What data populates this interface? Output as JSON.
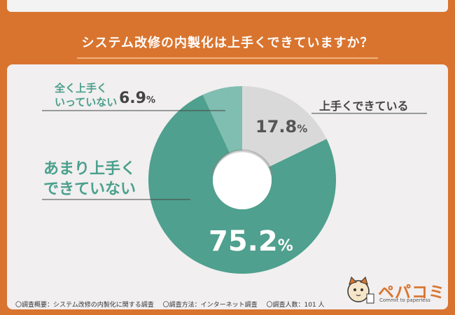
{
  "title": "システム改修の内製化は上手くできていますか？",
  "chart_data": {
    "type": "pie",
    "style": "donut",
    "slices": [
      {
        "label": "上手くできている",
        "value": 17.8,
        "color": "#d9d9d9"
      },
      {
        "label": "あまり上手く\nできていない",
        "value": 75.2,
        "color": "#4fa08e"
      },
      {
        "label": "全く上手く\nいっていない",
        "value": 6.9,
        "color": "#7fbeb0"
      }
    ],
    "percent_unit": "%"
  },
  "labels": {
    "not_at_all_line1": "全く上手く",
    "not_at_all_line2": "いっていない",
    "not_at_all_value": "6.9",
    "not_well_line1": "あまり上手く",
    "not_well_line2": "できていない",
    "well": "上手くできている",
    "well_value": "17.8",
    "not_well_value": "75.2",
    "unit": "%"
  },
  "footer": {
    "overview": "〇調査概要：システム改修の内製化に関する調査",
    "method": "〇調査方法：インターネット調査",
    "count": "〇調査人数：101 人"
  },
  "logo": {
    "name": "ペパコミ",
    "tagline": "Commit to paperless",
    "icon": "cat-mascot-icon"
  }
}
